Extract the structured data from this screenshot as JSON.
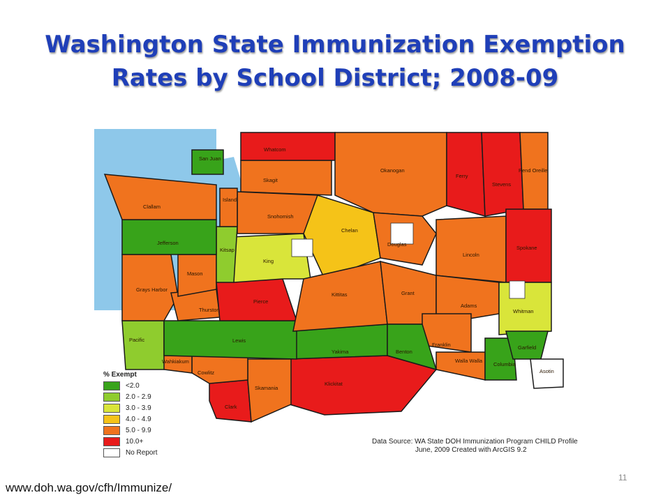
{
  "slide": {
    "title_line1": "Washington State Immunization Exemption",
    "title_line2": "Rates by School District; 2008-09",
    "footer_url": "www.doh.wa.gov/cfh/Immunize/",
    "page_number": "11"
  },
  "legend": {
    "title": "% Exempt",
    "items": [
      {
        "label": "<2.0",
        "color": "#38a31a"
      },
      {
        "label": "2.0 - 2.9",
        "color": "#8fcc2e"
      },
      {
        "label": "3.0 - 3.9",
        "color": "#d9e53a"
      },
      {
        "label": "4.0 - 4.9",
        "color": "#f5c318"
      },
      {
        "label": "5.0 - 9.9",
        "color": "#f0731e"
      },
      {
        "label": "10.0+",
        "color": "#e81b1b"
      },
      {
        "label": "No Report",
        "color": "#ffffff"
      }
    ]
  },
  "source": {
    "line1": "Data Source:  WA State DOH Immunization Program CHILD Profile",
    "line2": "June, 2009 Created with ArcGIS 9.2"
  },
  "counties": [
    {
      "name": "San Juan",
      "color": "#38a31a"
    },
    {
      "name": "Whatcom",
      "color": "#e81b1b"
    },
    {
      "name": "Okanogan",
      "color": "#f0731e"
    },
    {
      "name": "Ferry",
      "color": "#e81b1b"
    },
    {
      "name": "Stevens",
      "color": "#e81b1b"
    },
    {
      "name": "Pend Oreille",
      "color": "#f0731e"
    },
    {
      "name": "Skagit",
      "color": "#f0731e"
    },
    {
      "name": "Island",
      "color": "#f0731e"
    },
    {
      "name": "Clallam",
      "color": "#f0731e"
    },
    {
      "name": "Snohomish",
      "color": "#f0731e"
    },
    {
      "name": "Chelan",
      "color": "#f5c318"
    },
    {
      "name": "Douglas",
      "color": "#f0731e"
    },
    {
      "name": "Jefferson",
      "color": "#38a31a"
    },
    {
      "name": "Kitsap",
      "color": "#8fcc2e"
    },
    {
      "name": "King",
      "color": "#d9e53a"
    },
    {
      "name": "Lincoln",
      "color": "#f0731e"
    },
    {
      "name": "Spokane",
      "color": "#e81b1b"
    },
    {
      "name": "Mason",
      "color": "#f0731e"
    },
    {
      "name": "Grays Harbor",
      "color": "#f0731e"
    },
    {
      "name": "Kittitas",
      "color": "#f0731e"
    },
    {
      "name": "Grant",
      "color": "#f0731e"
    },
    {
      "name": "Thurston",
      "color": "#f0731e"
    },
    {
      "name": "Pierce",
      "color": "#e81b1b"
    },
    {
      "name": "Adams",
      "color": "#f0731e"
    },
    {
      "name": "Whitman",
      "color": "#d9e53a"
    },
    {
      "name": "Pacific",
      "color": "#8fcc2e"
    },
    {
      "name": "Lewis",
      "color": "#38a31a"
    },
    {
      "name": "Franklin",
      "color": "#f0731e"
    },
    {
      "name": "Garfield",
      "color": "#38a31a"
    },
    {
      "name": "Wahkiakum",
      "color": "#f0731e"
    },
    {
      "name": "Yakima",
      "color": "#38a31a"
    },
    {
      "name": "Benton",
      "color": "#38a31a"
    },
    {
      "name": "Walla Walla",
      "color": "#f0731e"
    },
    {
      "name": "Columbia",
      "color": "#38a31a"
    },
    {
      "name": "Asotin",
      "color": "#ffffff"
    },
    {
      "name": "Cowlitz",
      "color": "#f0731e"
    },
    {
      "name": "Skamania",
      "color": "#f0731e"
    },
    {
      "name": "Clark",
      "color": "#e81b1b"
    },
    {
      "name": "Klickitat",
      "color": "#e81b1b"
    }
  ]
}
